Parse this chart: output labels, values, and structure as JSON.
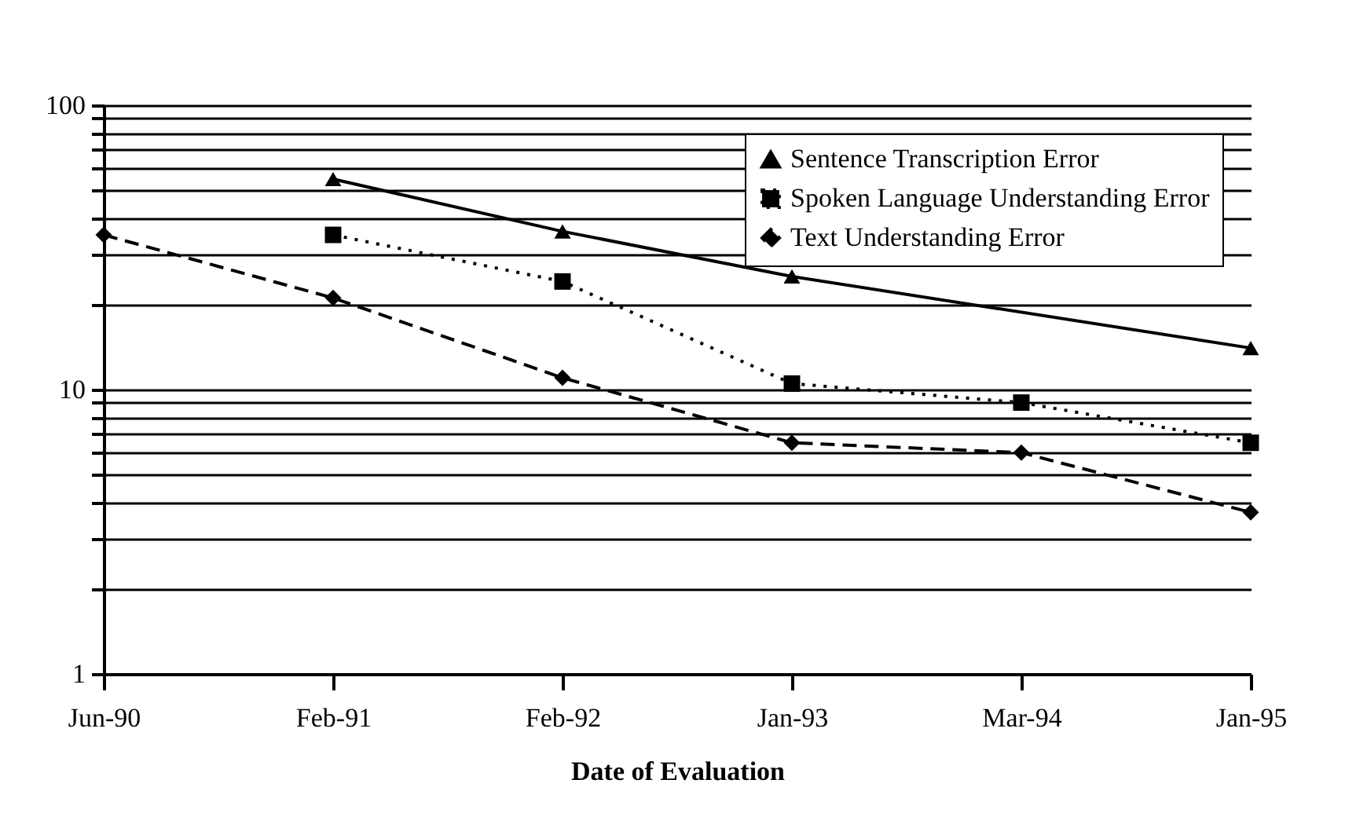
{
  "chart_data": {
    "type": "line",
    "xlabel": "Date of Evaluation",
    "categories": [
      "Jun-90",
      "Feb-91",
      "Feb-92",
      "Jan-93",
      "Mar-94",
      "Jan-95"
    ],
    "series": [
      {
        "name": "Sentence Transcription Error",
        "color": "#000000",
        "marker": "triangle",
        "line_style": "solid",
        "values": [
          null,
          55,
          36,
          25,
          null,
          14
        ]
      },
      {
        "name": "Spoken Language Understanding Error",
        "color": "#000000",
        "marker": "square",
        "line_style": "dotted",
        "values": [
          null,
          35,
          24,
          10.5,
          9,
          6.5
        ]
      },
      {
        "name": "Text Understanding Error",
        "color": "#000000",
        "marker": "diamond",
        "line_style": "dashed",
        "values": [
          35,
          21,
          11,
          6.5,
          6,
          3.7
        ]
      }
    ],
    "log": true,
    "ylim": [
      1,
      100
    ],
    "yticks": [
      1,
      {
        "value": 2,
        "label": null
      },
      {
        "value": 3,
        "label": null
      },
      {
        "value": 4,
        "label": null
      },
      {
        "value": 5,
        "label": null
      },
      {
        "value": 6,
        "label": null
      },
      {
        "value": 7,
        "label": null
      },
      {
        "value": 8,
        "label": null
      },
      {
        "value": 9,
        "label": null
      },
      10,
      {
        "value": 20,
        "label": null
      },
      {
        "value": 30,
        "label": null
      },
      {
        "value": 40,
        "label": null
      },
      {
        "value": 50,
        "label": null
      },
      {
        "value": 60,
        "label": null
      },
      {
        "value": 70,
        "label": null
      },
      {
        "value": 80,
        "label": null
      },
      {
        "value": 90,
        "label": null
      },
      100
    ],
    "grid": "y",
    "legend": "top right"
  }
}
